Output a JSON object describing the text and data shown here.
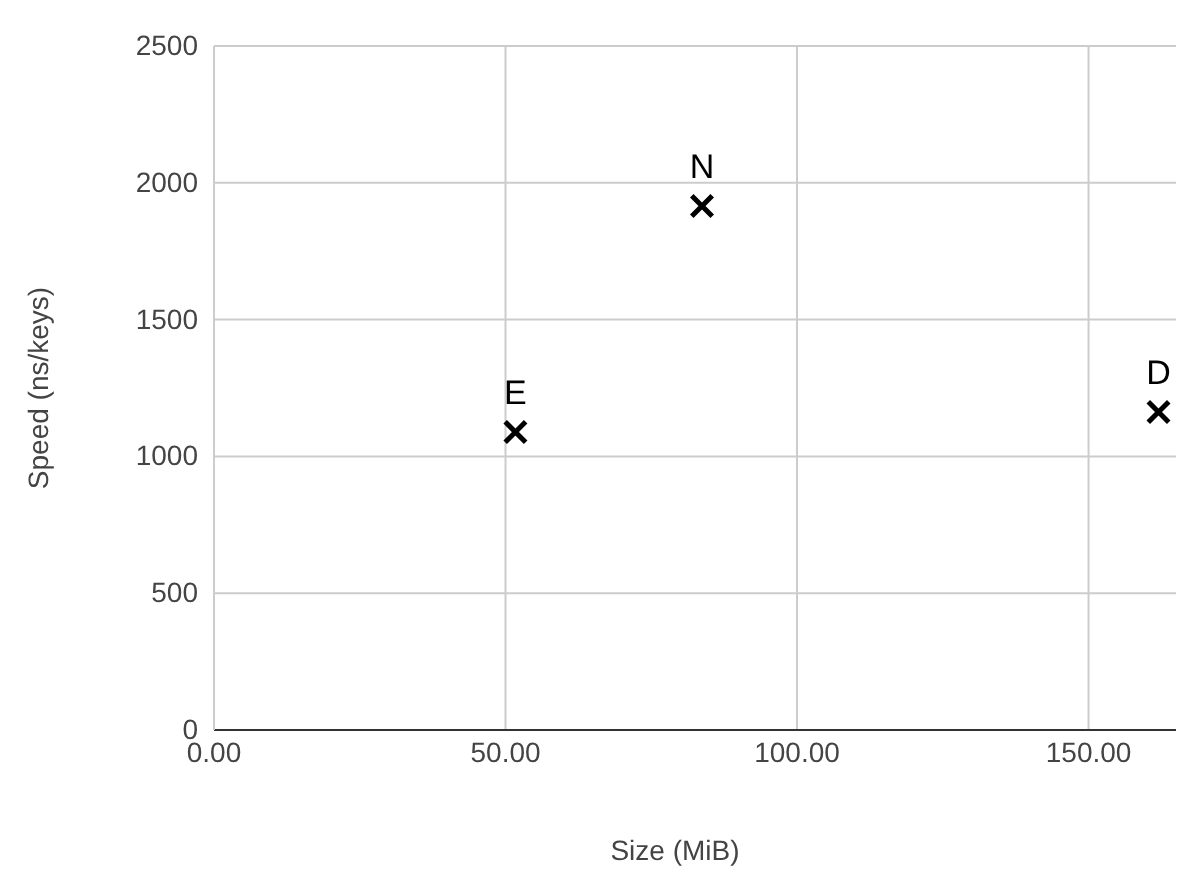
{
  "chart_data": {
    "type": "scatter",
    "xlabel": "Size (MiB)",
    "ylabel": "Speed (ns/keys)",
    "x": [
      51.7,
      83.7,
      162
    ],
    "values": [
      1089,
      1915,
      1162
    ],
    "color": "#000000",
    "marker": "cross",
    "grid": true,
    "xlim": [
      0,
      165
    ],
    "xticks": [
      {
        "value": 0,
        "label": "0.00"
      },
      {
        "value": 50,
        "label": "50.00"
      },
      {
        "value": 100,
        "label": "100.00"
      },
      {
        "value": 150,
        "label": "150.00"
      }
    ],
    "ylim": [
      0,
      2500
    ],
    "yticks": [
      0,
      500,
      1000,
      1500,
      2000,
      2500
    ],
    "annotations": [
      {
        "text": "E",
        "x": 51.7,
        "y": 1089
      },
      {
        "text": "N",
        "x": 83.7,
        "y": 1915
      },
      {
        "text": "D",
        "x": 162,
        "y": 1162
      }
    ]
  }
}
